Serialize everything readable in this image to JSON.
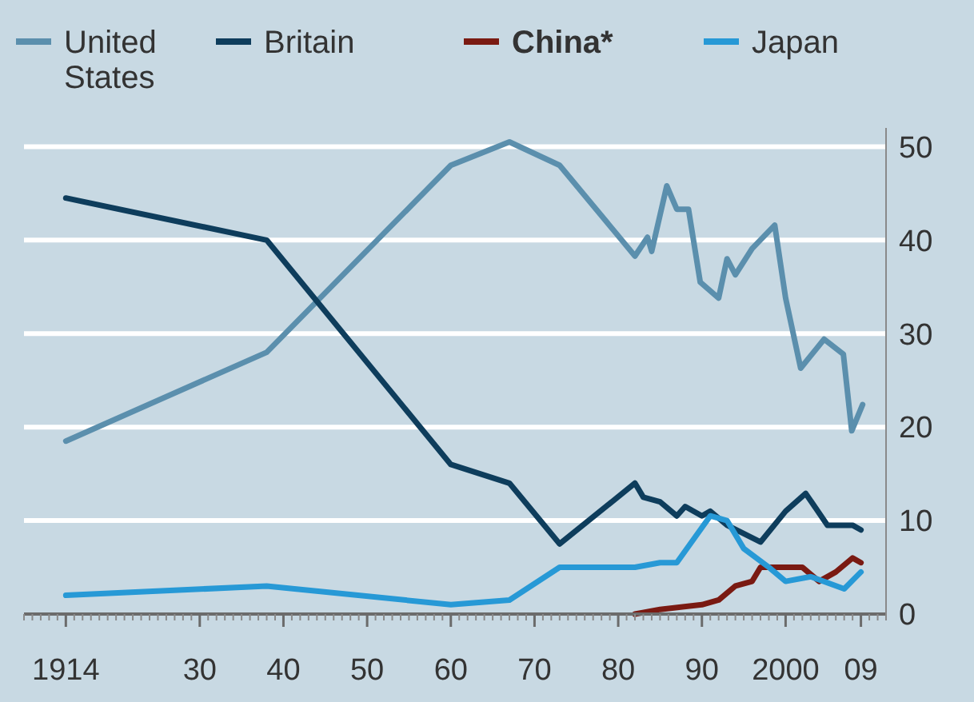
{
  "chart_data": {
    "type": "line",
    "series": [
      {
        "name": "United States",
        "color": "#5b8fad",
        "x": [
          1914,
          1938,
          1960,
          1967,
          1973,
          1982,
          1983.5,
          1984,
          1985.8,
          1987,
          1988.4,
          1989.8,
          1992,
          1993,
          1994,
          1996,
          1998.7,
          2000,
          2001.8,
          2004.6,
          2006.9,
          2007.9,
          2009.2
        ],
        "values": [
          18.5,
          28,
          48,
          50.5,
          48,
          38.3,
          40.3,
          38.8,
          45.8,
          43.3,
          43.3,
          35.5,
          33.8,
          38,
          36.3,
          39.1,
          41.6,
          33.8,
          26.3,
          29.4,
          27.8,
          19.6,
          22.4
        ]
      },
      {
        "name": "Britain",
        "color": "#0e3d5c",
        "x": [
          1914,
          1938,
          1960,
          1967,
          1973,
          1982,
          1983,
          1985,
          1987,
          1988,
          1990,
          1991,
          1993,
          1997,
          2000,
          2002.4,
          2005,
          2008,
          2009
        ],
        "values": [
          44.5,
          40,
          16,
          14,
          7.5,
          14,
          12.5,
          12,
          10.5,
          11.5,
          10.5,
          11,
          9.5,
          7.7,
          11,
          12.9,
          9.5,
          9.5,
          9
        ]
      },
      {
        "name": "China*",
        "color": "#7a1a12",
        "x": [
          1982,
          1985,
          1990,
          1992,
          1994,
          1996,
          1997,
          2000,
          2002,
          2004,
          2006,
          2008,
          2009
        ],
        "values": [
          0,
          0.5,
          1,
          1.5,
          3,
          3.5,
          5,
          5,
          5,
          3.5,
          4.5,
          6,
          5.5
        ]
      },
      {
        "name": "Japan",
        "color": "#2799d6",
        "x": [
          1914,
          1938,
          1960,
          1967,
          1973,
          1982,
          1985,
          1987,
          1989,
          1991,
          1993,
          1995,
          1998,
          2000,
          2003,
          2007,
          2009
        ],
        "values": [
          2,
          3,
          1,
          1.5,
          5,
          5,
          5.5,
          5.5,
          8,
          10.5,
          10,
          7,
          5,
          3.5,
          4,
          2.7,
          4.5
        ]
      }
    ],
    "xlim": [
      1909,
      2012
    ],
    "xticks": [
      {
        "value": 1914,
        "label": "1914"
      },
      {
        "value": 1930,
        "label": "30"
      },
      {
        "value": 1940,
        "label": "40"
      },
      {
        "value": 1950,
        "label": "50"
      },
      {
        "value": 1960,
        "label": "60"
      },
      {
        "value": 1970,
        "label": "70"
      },
      {
        "value": 1980,
        "label": "80"
      },
      {
        "value": 1990,
        "label": "90"
      },
      {
        "value": 2000,
        "label": "2000"
      },
      {
        "value": 2009,
        "label": "09"
      }
    ],
    "ylim": [
      0,
      52
    ],
    "yticks": [
      0,
      10,
      20,
      30,
      40,
      50
    ],
    "grid": "y",
    "legend": "top"
  }
}
